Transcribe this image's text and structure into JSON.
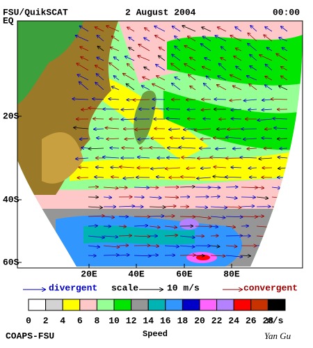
{
  "header": {
    "source": "FSU/QuikSCAT",
    "date": "2 August 2004",
    "time": "00:00"
  },
  "map": {
    "lat_labels": [
      "EQ",
      "20S",
      "40S",
      "60S"
    ],
    "lon_labels": [
      "20E",
      "40E",
      "60E",
      "80E"
    ]
  },
  "legend": {
    "divergent": "divergent",
    "scale": "scale",
    "scale_value": "10 m/s",
    "convergent": "convergent"
  },
  "colorbar": {
    "ticks": [
      0,
      2,
      4,
      6,
      8,
      10,
      12,
      14,
      16,
      18,
      20,
      22,
      24,
      26,
      28
    ],
    "unit": "m/s",
    "colors": [
      "#ffffff",
      "#d3d3d3",
      "#ffff00",
      "#ffc8c8",
      "#96ff96",
      "#00e600",
      "#969696",
      "#00b4b4",
      "#3296ff",
      "#0000c8",
      "#ff64ff",
      "#b482ff",
      "#ff0000",
      "#c83200",
      "#000000"
    ]
  },
  "footer": {
    "credit": "COAPS-FSU",
    "label": "Speed",
    "author": "Yan Gu"
  }
}
